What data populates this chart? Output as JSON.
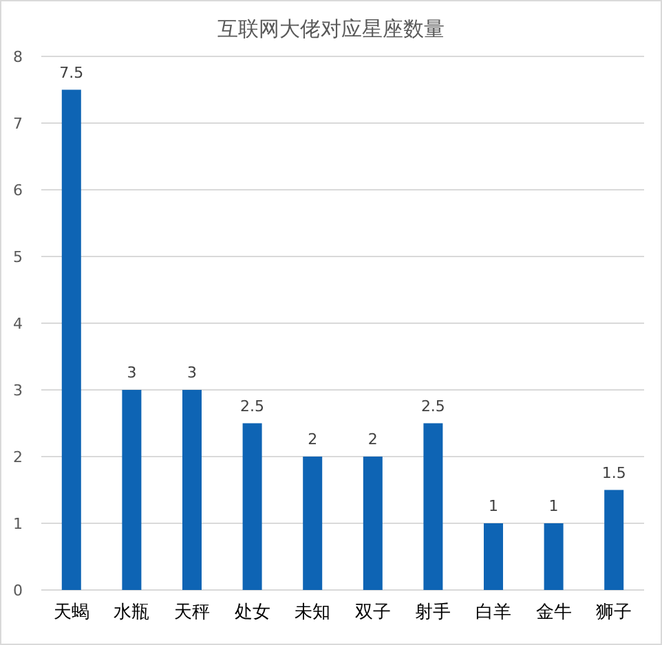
{
  "chart_data": {
    "type": "bar",
    "title": "互联网大佬对应星座数量",
    "categories": [
      "天蝎",
      "水瓶",
      "天秤",
      "处女",
      "未知",
      "双子",
      "射手",
      "白羊",
      "金牛",
      "狮子"
    ],
    "values": [
      7.5,
      3,
      3,
      2.5,
      2,
      2,
      2.5,
      1,
      1,
      1.5
    ],
    "color": "#0e64b4",
    "ylim": [
      0,
      8
    ],
    "yticks": [
      0,
      1,
      2,
      3,
      4,
      5,
      6,
      7,
      8
    ],
    "grid": "y",
    "data_labels": true
  }
}
